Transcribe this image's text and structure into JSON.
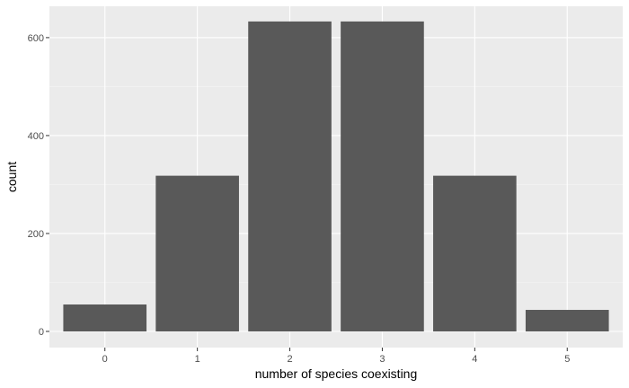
{
  "chart_data": {
    "type": "bar",
    "categories": [
      "0",
      "1",
      "2",
      "3",
      "4",
      "5"
    ],
    "values": [
      55,
      318,
      633,
      633,
      318,
      44
    ],
    "title": "",
    "xlabel": "number of species coexisting",
    "ylabel": "count",
    "ylim": [
      -33,
      664
    ],
    "yticks": [
      0,
      200,
      400,
      600
    ],
    "ytick_labels": [
      "0",
      "200",
      "400",
      "600"
    ],
    "grid": true,
    "legend": "none"
  },
  "colors": {
    "panel_background": "#ebebeb",
    "major_gridline": "#ffffff",
    "minor_gridline": "#f5f5f5",
    "bar_fill": "#595959",
    "tick_text": "#4d4d4d",
    "tick_mark": "#333333"
  }
}
